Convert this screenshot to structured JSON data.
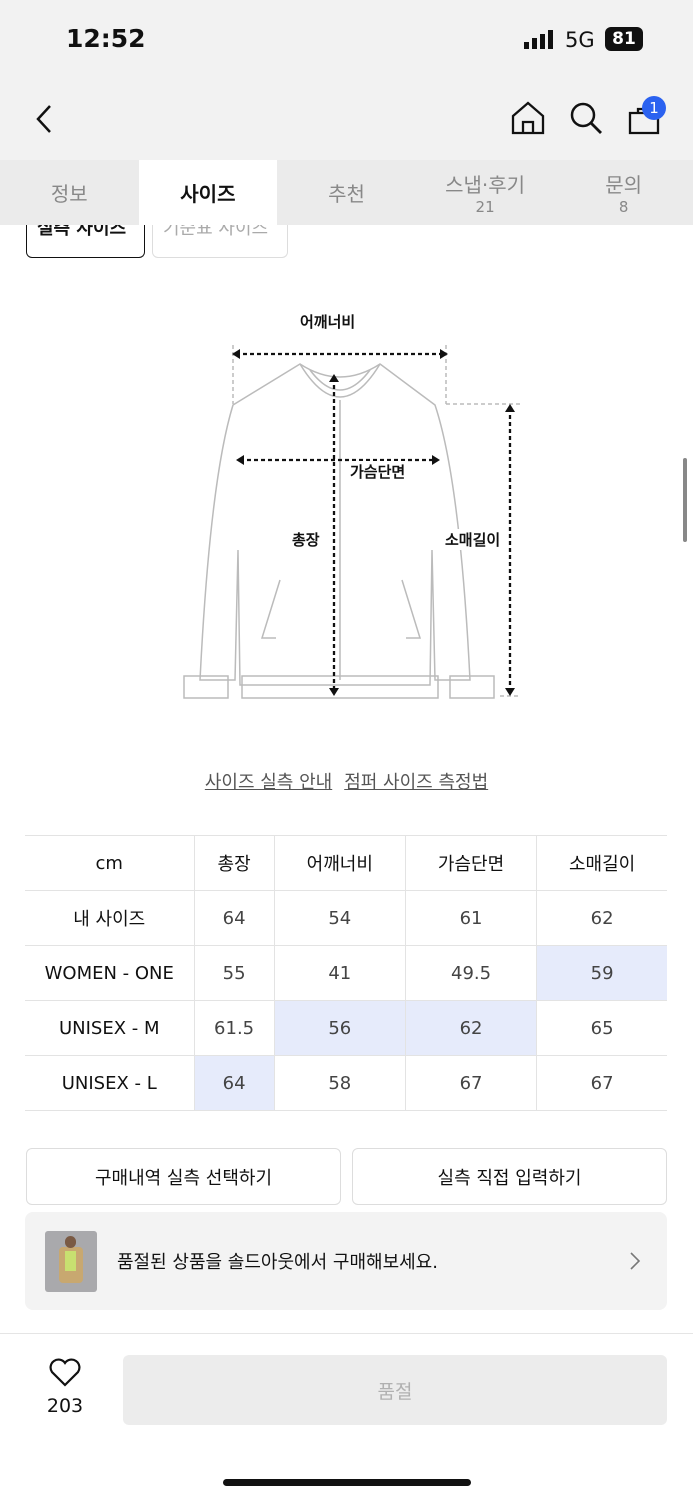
{
  "status": {
    "time": "12:52",
    "network": "5G",
    "battery": "81"
  },
  "nav": {
    "cart_count": "1"
  },
  "tabs": [
    {
      "label": "정보"
    },
    {
      "label": "사이즈"
    },
    {
      "label": "추천"
    },
    {
      "label": "스냅·후기",
      "count": "21"
    },
    {
      "label": "문의",
      "count": "8"
    }
  ],
  "subtabs": {
    "actual": "실측 사이즈",
    "standard": "기준표 사이즈"
  },
  "diagram": {
    "shoulder": "어깨너비",
    "chest": "가슴단면",
    "length": "총장",
    "sleeve": "소매길이"
  },
  "links": {
    "guide": "사이즈 실측 안내",
    "method": "점퍼 사이즈 측정법"
  },
  "table": {
    "headers": [
      "cm",
      "총장",
      "어깨너비",
      "가슴단면",
      "소매길이"
    ],
    "rows": [
      {
        "label": "내 사이즈",
        "values": [
          "64",
          "54",
          "61",
          "62"
        ],
        "highlight": []
      },
      {
        "label": "WOMEN - ONE",
        "values": [
          "55",
          "41",
          "49.5",
          "59"
        ],
        "highlight": [
          3
        ]
      },
      {
        "label": "UNISEX - M",
        "values": [
          "61.5",
          "56",
          "62",
          "65"
        ],
        "highlight": [
          1,
          2
        ]
      },
      {
        "label": "UNISEX - L",
        "values": [
          "64",
          "58",
          "67",
          "67"
        ],
        "highlight": [
          0
        ]
      }
    ],
    "highlight_color": "#e6ebfb"
  },
  "buttons": {
    "history": "구매내역 실측 선택하기",
    "direct": "실측 직접 입력하기"
  },
  "banner": {
    "text": "품절된 상품을 솔드아웃에서 구매해보세요."
  },
  "bottom": {
    "likes": "203",
    "buy": "품절"
  }
}
